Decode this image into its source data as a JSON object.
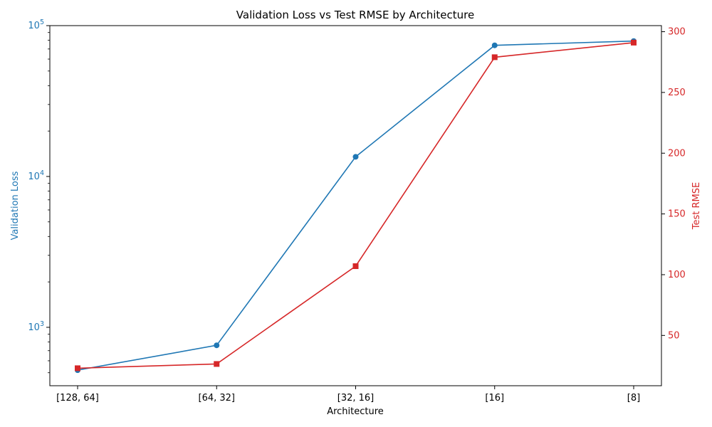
{
  "chart_data": {
    "type": "line",
    "title": "Validation Loss vs Test RMSE by Architecture",
    "xlabel": "Architecture",
    "categories": [
      "[128, 64]",
      "[64, 32]",
      "[32, 16]",
      "[16]",
      "[8]"
    ],
    "series": [
      {
        "name": "Validation Loss",
        "axis": "left",
        "scale": "log",
        "color": "#1f77b4",
        "marker": "circle",
        "values": [
          520,
          760,
          13500,
          74000,
          79000
        ]
      },
      {
        "name": "Test RMSE",
        "axis": "right",
        "scale": "linear",
        "color": "#d62728",
        "marker": "square",
        "values": [
          23,
          26.5,
          107,
          279,
          291
        ]
      }
    ],
    "y_left": {
      "label": "Validation Loss",
      "scale": "log",
      "range": [
        410,
        100000
      ],
      "ticks": [
        {
          "value": 1000,
          "base": "10",
          "exp": "3"
        },
        {
          "value": 10000,
          "base": "10",
          "exp": "4"
        },
        {
          "value": 100000,
          "base": "10",
          "exp": "5"
        }
      ],
      "color": "#1f77b4"
    },
    "y_right": {
      "label": "Test RMSE",
      "scale": "linear",
      "range": [
        8.6,
        305
      ],
      "ticks": [
        50,
        100,
        150,
        200,
        250,
        300
      ],
      "color": "#d62728"
    },
    "grid": false,
    "legend": "none"
  }
}
